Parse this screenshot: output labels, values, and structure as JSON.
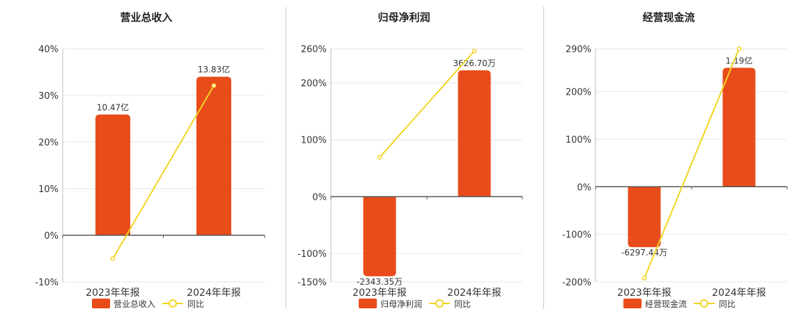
{
  "chart_data": [
    {
      "type": "bar",
      "title": "营业总收入",
      "categories": [
        "2023年年报",
        "2024年年报"
      ],
      "bar_series": {
        "name": "营业总收入",
        "values": [
          25.9,
          34.0
        ],
        "labels": [
          "10.47亿",
          "13.83亿"
        ]
      },
      "line_series": {
        "name": "同比",
        "values": [
          -5.0,
          32.1
        ]
      },
      "yticks": [
        "40%",
        "30%",
        "20%",
        "10%",
        "0%",
        "-10%"
      ],
      "ylim": [
        -10,
        40
      ],
      "grid": true,
      "legend": "bottom"
    },
    {
      "type": "bar",
      "title": "归母净利润",
      "categories": [
        "2023年年报",
        "2024年年报"
      ],
      "bar_series": {
        "name": "归母净利润",
        "values": [
          -140,
          222
        ],
        "labels": [
          "-2343.35万",
          "3626.70万"
        ]
      },
      "line_series": {
        "name": "同比",
        "values": [
          69,
          256
        ]
      },
      "yticks": [
        "260%",
        "200%",
        "100%",
        "0%",
        "-100%",
        "-150%"
      ],
      "ylim": [
        -150,
        260
      ],
      "grid": true,
      "legend": "bottom"
    },
    {
      "type": "bar",
      "title": "经营现金流",
      "categories": [
        "2023年年报",
        "2024年年报"
      ],
      "bar_series": {
        "name": "经营现金流",
        "values": [
          -127,
          250
        ],
        "labels": [
          "-6297.44万",
          "1.19亿"
        ]
      },
      "line_series": {
        "name": "同比",
        "values": [
          -192,
          290
        ]
      },
      "yticks": [
        "290%",
        "200%",
        "100%",
        "0%",
        "-100%",
        "-200%"
      ],
      "ylim": [
        -200,
        290
      ],
      "grid": true,
      "legend": "bottom"
    }
  ],
  "colors": {
    "bar": "#E84C1A",
    "line": "#F2D422",
    "grid": "#e6e6e6",
    "axis": "#555555",
    "text": "#333333"
  }
}
